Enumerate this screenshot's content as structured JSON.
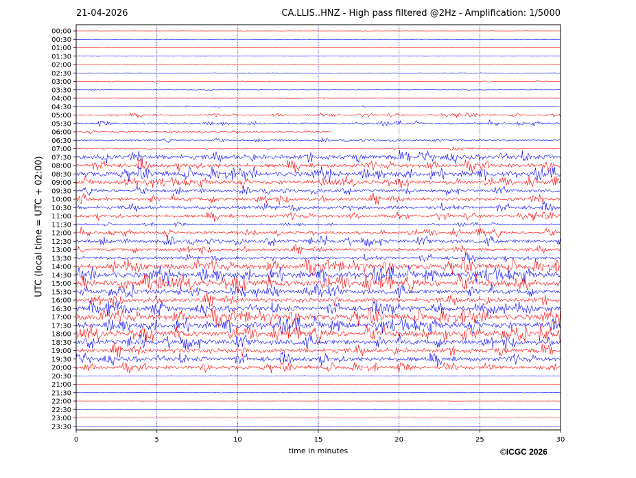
{
  "header": {
    "date": "21-04-2026",
    "title": "CA.LLIS..HNZ - High pass filtered @2Hz - Amplification: 1/5000"
  },
  "copyright": "©ICGC 2026",
  "chart_data": {
    "type": "line",
    "title": "CA.LLIS..HNZ - High pass filtered @2Hz - Amplification: 1/5000",
    "xlabel": "time in minutes",
    "ylabel": "UTC (local time = UTC + 02:00)",
    "xlim": [
      0,
      30
    ],
    "x_ticks": [
      0,
      5,
      10,
      15,
      20,
      25,
      30
    ],
    "rows": [
      "00:00",
      "00:30",
      "01:00",
      "01:30",
      "02:00",
      "02:30",
      "03:00",
      "03:30",
      "04:00",
      "04:30",
      "05:00",
      "05:30",
      "06:00",
      "06:30",
      "07:00",
      "07:30",
      "08:00",
      "08:30",
      "09:00",
      "09:30",
      "10:00",
      "10:30",
      "11:00",
      "11:30",
      "12:00",
      "12:30",
      "13:00",
      "13:30",
      "14:00",
      "14:30",
      "15:00",
      "15:30",
      "16:00",
      "16:30",
      "17:00",
      "17:30",
      "18:00",
      "18:30",
      "19:00",
      "19:30",
      "20:00",
      "20:30",
      "21:00",
      "21:30",
      "22:00",
      "22:30",
      "23:00",
      "23:30"
    ],
    "row_colors": [
      "#ff0000",
      "#0000ff"
    ],
    "amplitude": [
      0.02,
      0.02,
      0.02,
      0.02,
      0.02,
      0.02,
      0.05,
      0.05,
      0.03,
      0.08,
      0.15,
      0.18,
      0.15,
      0.15,
      0.12,
      0.45,
      0.4,
      0.5,
      0.4,
      0.3,
      0.35,
      0.35,
      0.3,
      0.15,
      0.3,
      0.35,
      0.3,
      0.3,
      0.55,
      0.6,
      0.65,
      0.45,
      0.45,
      0.5,
      0.6,
      0.6,
      0.6,
      0.5,
      0.45,
      0.45,
      0.35,
      0.02,
      0.02,
      0.02,
      0.02,
      0.02,
      0.02,
      0.02
    ],
    "coverage_end": [
      30,
      30,
      30,
      30,
      30,
      30,
      30,
      30,
      30,
      30,
      30,
      30,
      15.8,
      30,
      30,
      30,
      30,
      30,
      30,
      30,
      30,
      30,
      30,
      30,
      30,
      30,
      30,
      30,
      30,
      30,
      30,
      30,
      30,
      30,
      30,
      30,
      30,
      30,
      30,
      30,
      30,
      30,
      30,
      30,
      30,
      30,
      30,
      30
    ],
    "grid": true
  }
}
